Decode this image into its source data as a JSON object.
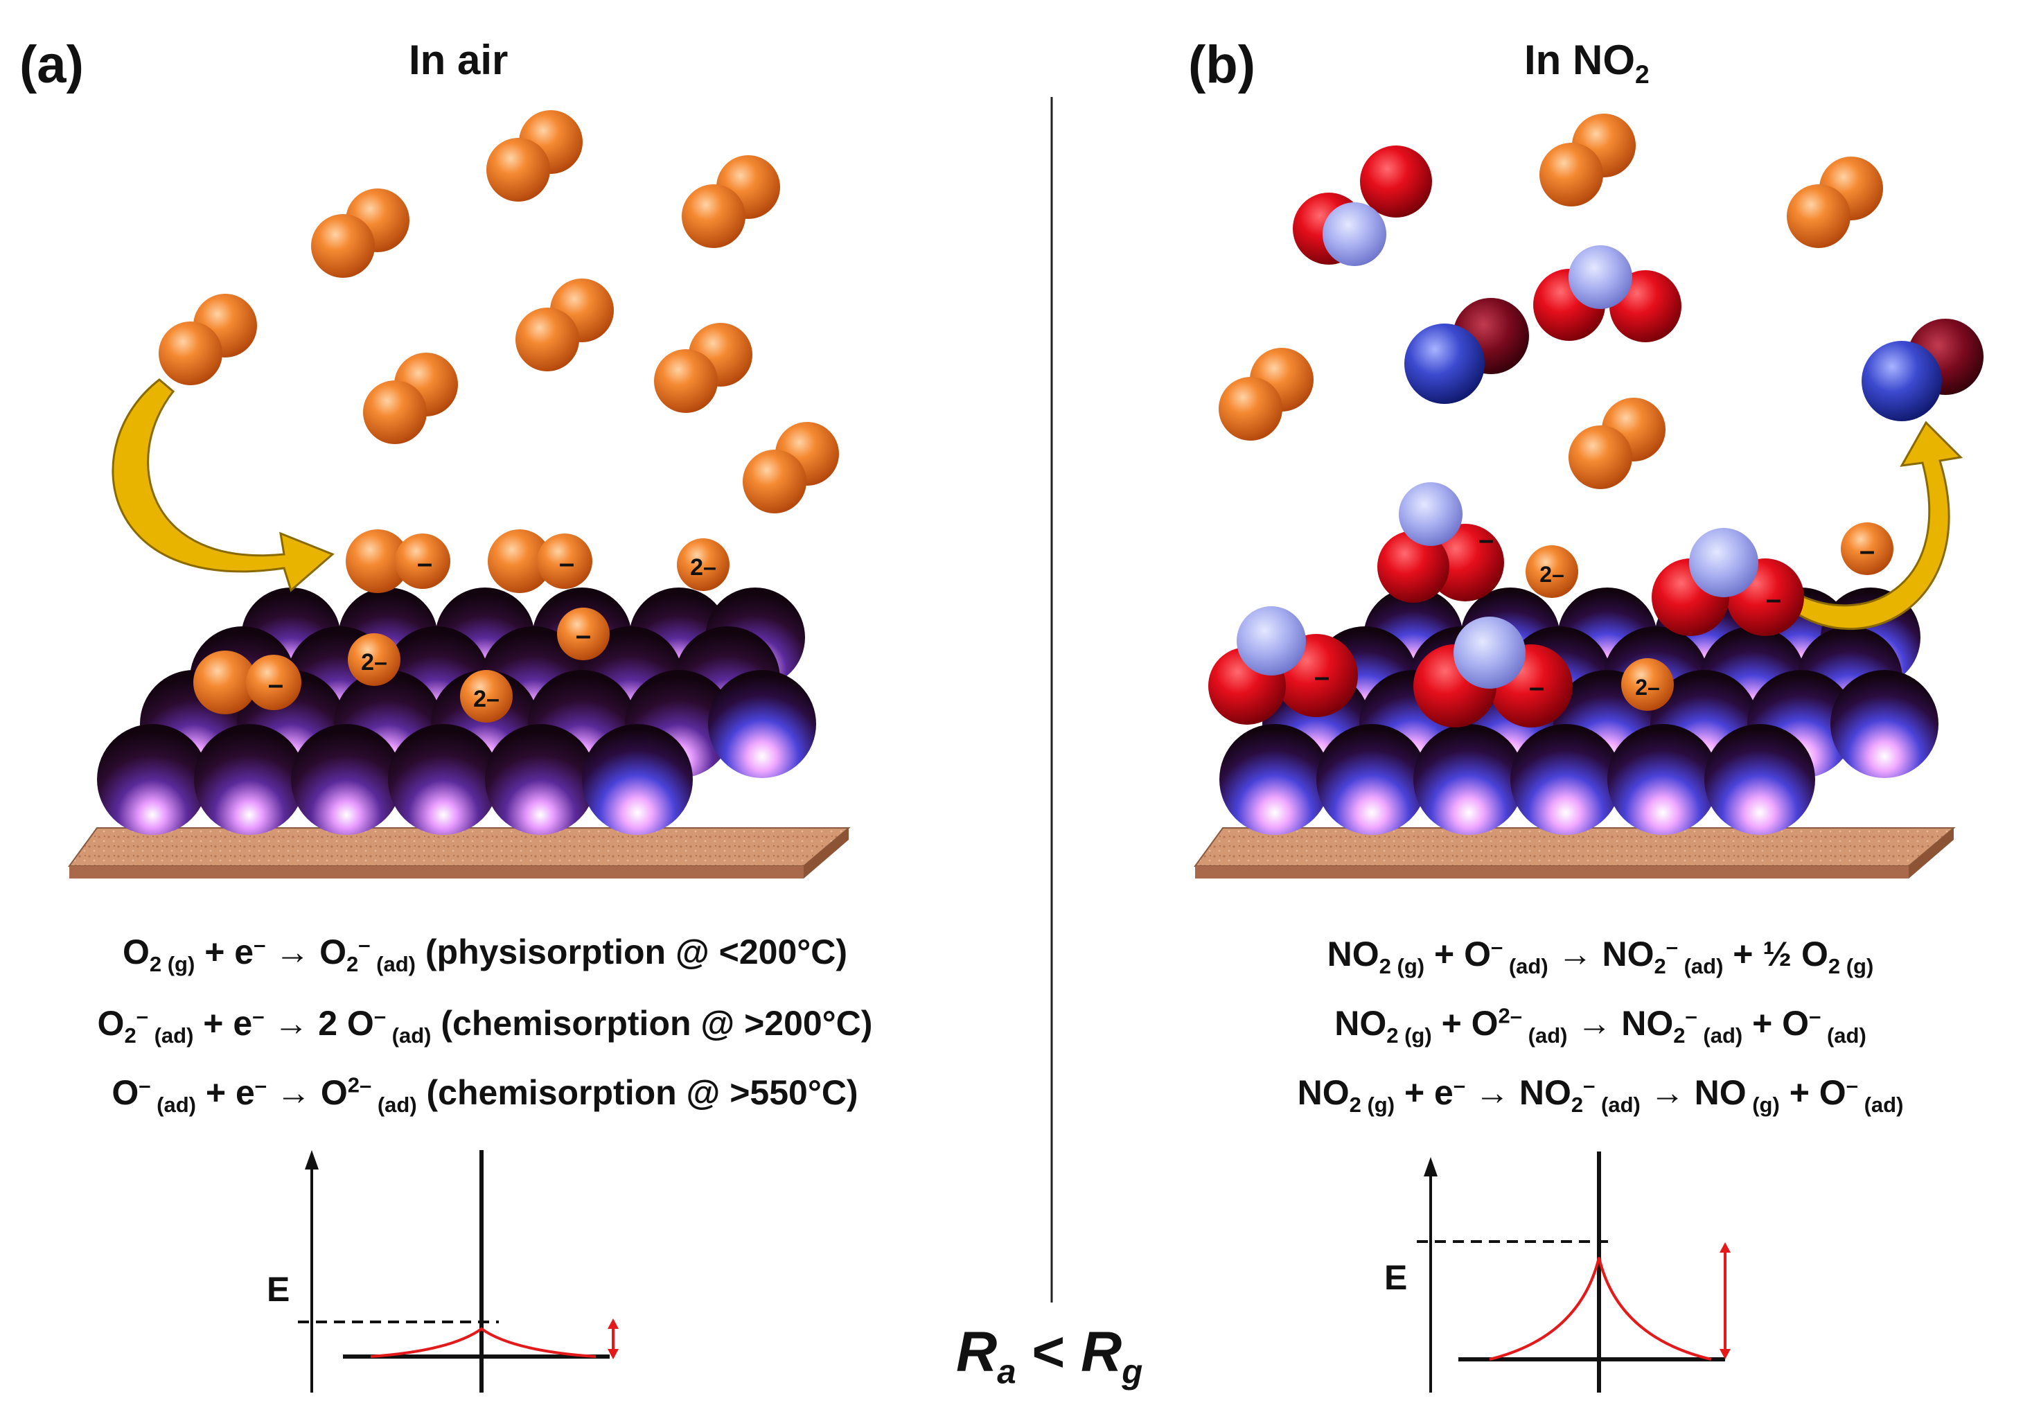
{
  "panel_a": {
    "letter": "(a)",
    "title": "In air",
    "equations": [
      {
        "parts": [
          "O",
          "2 (g)",
          " + e",
          "–",
          " → O",
          "2",
          "–",
          " (ad)",
          " (physisorption @ <200°C)"
        ]
      },
      {
        "parts": [
          "O",
          "2",
          "–",
          " (ad)",
          " + e",
          "–",
          " → 2 O",
          "–",
          " (ad)",
          " (chemisorption @ >200°C)"
        ]
      },
      {
        "parts": [
          "O",
          "–",
          " (ad)",
          " + e",
          "–",
          " → O",
          "2–",
          " (ad)",
          " (chemisorption @ >550°C)"
        ]
      }
    ],
    "energy_label": "E",
    "ion_charges": [
      "–",
      "–",
      "2–",
      "–",
      "2–",
      "2–",
      "–"
    ]
  },
  "panel_b": {
    "letter": "(b)",
    "title_main": "In NO",
    "title_sub": "2",
    "energy_label": "E",
    "ion_charges": [
      "–",
      "2–",
      "–",
      "–",
      "–",
      "–",
      "2–"
    ]
  },
  "relation": {
    "r1": "R",
    "s1": "a",
    "op": " < ",
    "r2": "R",
    "s2": "g"
  },
  "colors": {
    "oxygen_orange": "#f07a24",
    "no2_red": "#e0101e",
    "nitrogen_blue": "#3848c8",
    "substrate": "#d49872",
    "arrow_gold": "#e8b400",
    "band_red": "#e41a1a"
  }
}
